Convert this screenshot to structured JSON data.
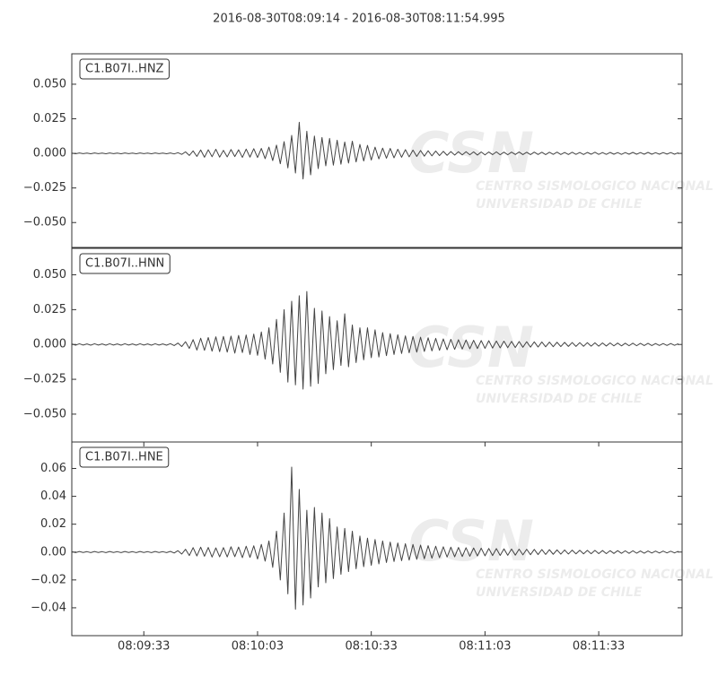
{
  "title": "2016-08-30T08:09:14  -  2016-08-30T08:11:54.995",
  "watermark": {
    "logo": "CSN",
    "lines": [
      "CENTRO SISMOLOGICO NACIONAL",
      "UNIVERSIDAD DE CHILE"
    ]
  },
  "chart_data": [
    {
      "type": "line",
      "label": "C1.B07I..HNZ",
      "color": "#444444",
      "x": [
        "08:09:14",
        "08:09:15",
        "08:09:16",
        "08:09:17",
        "08:09:18",
        "08:09:19",
        "08:09:20",
        "08:09:21",
        "08:09:22",
        "08:09:23",
        "08:09:24",
        "08:09:25",
        "08:09:26",
        "08:09:27",
        "08:09:28",
        "08:09:29",
        "08:09:30",
        "08:09:31",
        "08:09:32",
        "08:09:33",
        "08:09:34",
        "08:09:35",
        "08:09:36",
        "08:09:37",
        "08:09:38",
        "08:09:39",
        "08:09:40",
        "08:09:41",
        "08:09:42",
        "08:09:43",
        "08:09:44",
        "08:09:45",
        "08:09:46",
        "08:09:47",
        "08:09:48",
        "08:09:49",
        "08:09:50",
        "08:09:51",
        "08:09:52",
        "08:09:53",
        "08:09:54",
        "08:09:55",
        "08:09:56",
        "08:09:57",
        "08:09:58",
        "08:09:59",
        "08:10:00",
        "08:10:01",
        "08:10:02",
        "08:10:03",
        "08:10:04",
        "08:10:05",
        "08:10:06",
        "08:10:07",
        "08:10:08",
        "08:10:09",
        "08:10:10",
        "08:10:11",
        "08:10:12",
        "08:10:13",
        "08:10:14",
        "08:10:15",
        "08:10:16",
        "08:10:17",
        "08:10:18",
        "08:10:19",
        "08:10:20",
        "08:10:21",
        "08:10:22",
        "08:10:23",
        "08:10:24",
        "08:10:25",
        "08:10:26",
        "08:10:27",
        "08:10:28",
        "08:10:29",
        "08:10:30",
        "08:10:31",
        "08:10:32",
        "08:10:33",
        "08:10:34",
        "08:10:35",
        "08:10:36",
        "08:10:37",
        "08:10:38",
        "08:10:39",
        "08:10:40",
        "08:10:41",
        "08:10:42",
        "08:10:43",
        "08:10:44",
        "08:10:45",
        "08:10:46",
        "08:10:47",
        "08:10:48",
        "08:10:49",
        "08:10:50",
        "08:10:51",
        "08:10:52",
        "08:10:53",
        "08:10:54",
        "08:10:55",
        "08:10:56",
        "08:10:57",
        "08:10:58",
        "08:10:59",
        "08:11:00",
        "08:11:01",
        "08:11:02",
        "08:11:03",
        "08:11:04",
        "08:11:05",
        "08:11:06",
        "08:11:07",
        "08:11:08",
        "08:11:09",
        "08:11:10",
        "08:11:11",
        "08:11:12",
        "08:11:13",
        "08:11:14",
        "08:11:15",
        "08:11:16",
        "08:11:17",
        "08:11:18",
        "08:11:19",
        "08:11:20",
        "08:11:21",
        "08:11:22",
        "08:11:23",
        "08:11:24",
        "08:11:25",
        "08:11:26",
        "08:11:27",
        "08:11:28",
        "08:11:29",
        "08:11:30",
        "08:11:31",
        "08:11:32",
        "08:11:33",
        "08:11:34",
        "08:11:35",
        "08:11:36",
        "08:11:37",
        "08:11:38",
        "08:11:39",
        "08:11:40",
        "08:11:41",
        "08:11:42",
        "08:11:43",
        "08:11:44",
        "08:11:45",
        "08:11:46",
        "08:11:47",
        "08:11:48",
        "08:11:49",
        "08:11:50",
        "08:11:51",
        "08:11:52",
        "08:11:53",
        "08:11:54"
      ],
      "values": [
        0.0002,
        -0.0003,
        0.0003,
        -0.0002,
        0.0002,
        -0.0003,
        0.0003,
        -0.0002,
        0.0002,
        -0.0003,
        0.0003,
        -0.0002,
        0.0002,
        -0.0003,
        0.0003,
        -0.0002,
        0.0002,
        -0.0003,
        0.0003,
        -0.0002,
        0.0002,
        -0.0003,
        0.0003,
        -0.0002,
        0.0002,
        -0.0003,
        0.0003,
        -0.0004,
        0.0005,
        -0.0007,
        0.0011,
        -0.0015,
        0.0018,
        -0.0022,
        0.0025,
        -0.0028,
        0.0026,
        -0.0024,
        0.003,
        -0.0027,
        0.0022,
        -0.0025,
        0.0028,
        -0.0023,
        0.0026,
        -0.0029,
        0.0031,
        -0.0027,
        0.0034,
        -0.003,
        0.0036,
        -0.0038,
        0.0045,
        -0.0052,
        0.006,
        -0.0075,
        0.0085,
        -0.0105,
        0.013,
        -0.0142,
        0.0225,
        -0.0185,
        0.016,
        -0.0155,
        0.0125,
        -0.011,
        0.0115,
        -0.009,
        0.0108,
        -0.0085,
        0.0095,
        -0.0078,
        0.0082,
        -0.007,
        0.0088,
        -0.0062,
        0.0065,
        -0.0055,
        0.0058,
        -0.0048,
        0.0045,
        -0.004,
        0.0038,
        -0.0035,
        0.0036,
        -0.0032,
        0.003,
        -0.0028,
        0.0027,
        -0.0025,
        0.0024,
        -0.0022,
        0.0021,
        -0.002,
        0.0019,
        -0.0018,
        0.0017,
        -0.0016,
        0.0015,
        -0.0014,
        0.0013,
        -0.0012,
        0.0012,
        -0.0011,
        0.0012,
        -0.001,
        0.0011,
        -0.0012,
        0.001,
        -0.0011,
        0.001,
        -0.0009,
        0.0011,
        -0.001,
        0.0009,
        -0.001,
        0.0009,
        -0.0008,
        0.001,
        -0.0009,
        0.0008,
        -0.0009,
        0.0009,
        -0.0008,
        0.0008,
        -0.0009,
        0.0008,
        -0.0007,
        0.0009,
        -0.0008,
        0.0007,
        -0.0008,
        0.0008,
        -0.0007,
        0.0007,
        -0.0008,
        0.0007,
        -0.0006,
        0.0008,
        -0.0007,
        0.0006,
        -0.0007,
        0.0007,
        -0.0006,
        0.0006,
        -0.0007,
        0.0006,
        -0.0006,
        0.0007,
        -0.0006,
        0.0006,
        -0.0006,
        0.0007,
        -0.0006,
        0.0005,
        -0.0006,
        0.0006,
        -0.0005,
        0.0006,
        -0.0006,
        0.0005
      ],
      "xlim": [
        "08:09:14",
        "08:11:54.995"
      ],
      "ylim": [
        -0.068,
        0.072
      ],
      "yticks": [
        {
          "value": -0.05,
          "label": "−0.050"
        },
        {
          "value": -0.025,
          "label": "−0.025"
        },
        {
          "value": 0,
          "label": "0.000"
        },
        {
          "value": 0.025,
          "label": "0.025"
        },
        {
          "value": 0.05,
          "label": "0.050"
        }
      ]
    },
    {
      "type": "line",
      "label": "C1.B07I..HNN",
      "color": "#444444",
      "x": [
        "08:09:14",
        "08:09:15",
        "08:09:16",
        "08:09:17",
        "08:09:18",
        "08:09:19",
        "08:09:20",
        "08:09:21",
        "08:09:22",
        "08:09:23",
        "08:09:24",
        "08:09:25",
        "08:09:26",
        "08:09:27",
        "08:09:28",
        "08:09:29",
        "08:09:30",
        "08:09:31",
        "08:09:32",
        "08:09:33",
        "08:09:34",
        "08:09:35",
        "08:09:36",
        "08:09:37",
        "08:09:38",
        "08:09:39",
        "08:09:40",
        "08:09:41",
        "08:09:42",
        "08:09:43",
        "08:09:44",
        "08:09:45",
        "08:09:46",
        "08:09:47",
        "08:09:48",
        "08:09:49",
        "08:09:50",
        "08:09:51",
        "08:09:52",
        "08:09:53",
        "08:09:54",
        "08:09:55",
        "08:09:56",
        "08:09:57",
        "08:09:58",
        "08:09:59",
        "08:10:00",
        "08:10:01",
        "08:10:02",
        "08:10:03",
        "08:10:04",
        "08:10:05",
        "08:10:06",
        "08:10:07",
        "08:10:08",
        "08:10:09",
        "08:10:10",
        "08:10:11",
        "08:10:12",
        "08:10:13",
        "08:10:14",
        "08:10:15",
        "08:10:16",
        "08:10:17",
        "08:10:18",
        "08:10:19",
        "08:10:20",
        "08:10:21",
        "08:10:22",
        "08:10:23",
        "08:10:24",
        "08:10:25",
        "08:10:26",
        "08:10:27",
        "08:10:28",
        "08:10:29",
        "08:10:30",
        "08:10:31",
        "08:10:32",
        "08:10:33",
        "08:10:34",
        "08:10:35",
        "08:10:36",
        "08:10:37",
        "08:10:38",
        "08:10:39",
        "08:10:40",
        "08:10:41",
        "08:10:42",
        "08:10:43",
        "08:10:44",
        "08:10:45",
        "08:10:46",
        "08:10:47",
        "08:10:48",
        "08:10:49",
        "08:10:50",
        "08:10:51",
        "08:10:52",
        "08:10:53",
        "08:10:54",
        "08:10:55",
        "08:10:56",
        "08:10:57",
        "08:10:58",
        "08:10:59",
        "08:11:00",
        "08:11:01",
        "08:11:02",
        "08:11:03",
        "08:11:04",
        "08:11:05",
        "08:11:06",
        "08:11:07",
        "08:11:08",
        "08:11:09",
        "08:11:10",
        "08:11:11",
        "08:11:12",
        "08:11:13",
        "08:11:14",
        "08:11:15",
        "08:11:16",
        "08:11:17",
        "08:11:18",
        "08:11:19",
        "08:11:20",
        "08:11:21",
        "08:11:22",
        "08:11:23",
        "08:11:24",
        "08:11:25",
        "08:11:26",
        "08:11:27",
        "08:11:28",
        "08:11:29",
        "08:11:30",
        "08:11:31",
        "08:11:32",
        "08:11:33",
        "08:11:34",
        "08:11:35",
        "08:11:36",
        "08:11:37",
        "08:11:38",
        "08:11:39",
        "08:11:40",
        "08:11:41",
        "08:11:42",
        "08:11:43",
        "08:11:44",
        "08:11:45",
        "08:11:46",
        "08:11:47",
        "08:11:48",
        "08:11:49",
        "08:11:50",
        "08:11:51",
        "08:11:52",
        "08:11:53",
        "08:11:54"
      ],
      "values": [
        0.0004,
        -0.0005,
        0.0005,
        -0.0004,
        0.0004,
        -0.0005,
        0.0005,
        -0.0004,
        0.0004,
        -0.0005,
        0.0005,
        -0.0004,
        0.0004,
        -0.0005,
        0.0005,
        -0.0004,
        0.0004,
        -0.0005,
        0.0005,
        -0.0004,
        0.0004,
        -0.0005,
        0.0005,
        -0.0004,
        0.0004,
        -0.0005,
        0.0006,
        -0.0008,
        0.001,
        -0.0015,
        0.002,
        -0.0028,
        0.0035,
        -0.004,
        0.0045,
        -0.0042,
        0.005,
        -0.0048,
        0.0055,
        -0.0052,
        0.0058,
        -0.0055,
        0.006,
        -0.0062,
        0.0065,
        -0.0058,
        0.0068,
        -0.0072,
        0.0075,
        -0.0078,
        0.009,
        -0.0105,
        0.012,
        -0.014,
        0.018,
        -0.02,
        0.025,
        -0.027,
        0.031,
        -0.029,
        0.035,
        -0.032,
        0.038,
        -0.03,
        0.026,
        -0.028,
        0.024,
        -0.021,
        0.02,
        -0.018,
        0.017,
        -0.015,
        0.022,
        -0.016,
        0.014,
        -0.013,
        0.012,
        -0.011,
        0.012,
        -0.0095,
        0.0105,
        -0.009,
        0.0085,
        -0.008,
        0.0078,
        -0.0072,
        0.007,
        -0.0065,
        0.0062,
        -0.006,
        0.0058,
        -0.0055,
        0.0052,
        -0.005,
        0.0048,
        -0.0046,
        0.0044,
        -0.0042,
        0.004,
        -0.0038,
        0.0037,
        -0.0035,
        0.0034,
        -0.0033,
        0.0032,
        -0.0031,
        0.003,
        -0.0029,
        0.0028,
        -0.0028,
        0.0027,
        -0.0026,
        0.0025,
        -0.0024,
        0.0024,
        -0.0023,
        0.0022,
        -0.0022,
        0.0021,
        -0.002,
        0.002,
        -0.0019,
        0.0019,
        -0.0018,
        0.0018,
        -0.0017,
        0.0017,
        -0.0016,
        0.0016,
        -0.0015,
        0.0015,
        -0.0014,
        0.0014,
        -0.0014,
        0.0013,
        -0.0013,
        0.0013,
        -0.0012,
        0.0012,
        -0.0012,
        0.0011,
        -0.0011,
        0.0011,
        -0.001,
        0.001,
        -0.001,
        0.0009,
        -0.0009,
        0.0009,
        -0.0009,
        0.0008,
        -0.0008,
        0.0008,
        -0.0008,
        0.0007,
        -0.0007,
        0.0007,
        -0.0007,
        0.0007,
        -0.0006,
        0.0006
      ],
      "xlim": [
        "08:09:14",
        "08:11:54.995"
      ],
      "ylim": [
        -0.07,
        0.069
      ],
      "yticks": [
        {
          "value": -0.05,
          "label": "−0.050"
        },
        {
          "value": -0.025,
          "label": "−0.025"
        },
        {
          "value": 0,
          "label": "0.000"
        },
        {
          "value": 0.025,
          "label": "0.025"
        },
        {
          "value": 0.05,
          "label": "0.050"
        }
      ]
    },
    {
      "type": "line",
      "label": "C1.B07I..HNE",
      "color": "#444444",
      "x": [
        "08:09:14",
        "08:09:15",
        "08:09:16",
        "08:09:17",
        "08:09:18",
        "08:09:19",
        "08:09:20",
        "08:09:21",
        "08:09:22",
        "08:09:23",
        "08:09:24",
        "08:09:25",
        "08:09:26",
        "08:09:27",
        "08:09:28",
        "08:09:29",
        "08:09:30",
        "08:09:31",
        "08:09:32",
        "08:09:33",
        "08:09:34",
        "08:09:35",
        "08:09:36",
        "08:09:37",
        "08:09:38",
        "08:09:39",
        "08:09:40",
        "08:09:41",
        "08:09:42",
        "08:09:43",
        "08:09:44",
        "08:09:45",
        "08:09:46",
        "08:09:47",
        "08:09:48",
        "08:09:49",
        "08:09:50",
        "08:09:51",
        "08:09:52",
        "08:09:53",
        "08:09:54",
        "08:09:55",
        "08:09:56",
        "08:09:57",
        "08:09:58",
        "08:09:59",
        "08:10:00",
        "08:10:01",
        "08:10:02",
        "08:10:03",
        "08:10:04",
        "08:10:05",
        "08:10:06",
        "08:10:07",
        "08:10:08",
        "08:10:09",
        "08:10:10",
        "08:10:11",
        "08:10:12",
        "08:10:13",
        "08:10:14",
        "08:10:15",
        "08:10:16",
        "08:10:17",
        "08:10:18",
        "08:10:19",
        "08:10:20",
        "08:10:21",
        "08:10:22",
        "08:10:23",
        "08:10:24",
        "08:10:25",
        "08:10:26",
        "08:10:27",
        "08:10:28",
        "08:10:29",
        "08:10:30",
        "08:10:31",
        "08:10:32",
        "08:10:33",
        "08:10:34",
        "08:10:35",
        "08:10:36",
        "08:10:37",
        "08:10:38",
        "08:10:39",
        "08:10:40",
        "08:10:41",
        "08:10:42",
        "08:10:43",
        "08:10:44",
        "08:10:45",
        "08:10:46",
        "08:10:47",
        "08:10:48",
        "08:10:49",
        "08:10:50",
        "08:10:51",
        "08:10:52",
        "08:10:53",
        "08:10:54",
        "08:10:55",
        "08:10:56",
        "08:10:57",
        "08:10:58",
        "08:10:59",
        "08:11:00",
        "08:11:01",
        "08:11:02",
        "08:11:03",
        "08:11:04",
        "08:11:05",
        "08:11:06",
        "08:11:07",
        "08:11:08",
        "08:11:09",
        "08:11:10",
        "08:11:11",
        "08:11:12",
        "08:11:13",
        "08:11:14",
        "08:11:15",
        "08:11:16",
        "08:11:17",
        "08:11:18",
        "08:11:19",
        "08:11:20",
        "08:11:21",
        "08:11:22",
        "08:11:23",
        "08:11:24",
        "08:11:25",
        "08:11:26",
        "08:11:27",
        "08:11:28",
        "08:11:29",
        "08:11:30",
        "08:11:31",
        "08:11:32",
        "08:11:33",
        "08:11:34",
        "08:11:35",
        "08:11:36",
        "08:11:37",
        "08:11:38",
        "08:11:39",
        "08:11:40",
        "08:11:41",
        "08:11:42",
        "08:11:43",
        "08:11:44",
        "08:11:45",
        "08:11:46",
        "08:11:47",
        "08:11:48",
        "08:11:49",
        "08:11:50",
        "08:11:51",
        "08:11:52",
        "08:11:53",
        "08:11:54"
      ],
      "values": [
        0.0003,
        -0.0004,
        0.0004,
        -0.0003,
        0.0003,
        -0.0004,
        0.0004,
        -0.0003,
        0.0003,
        -0.0004,
        0.0004,
        -0.0003,
        0.0003,
        -0.0004,
        0.0004,
        -0.0003,
        0.0003,
        -0.0004,
        0.0004,
        -0.0003,
        0.0003,
        -0.0004,
        0.0004,
        -0.0003,
        0.0003,
        -0.0004,
        0.0005,
        -0.0007,
        0.001,
        -0.0014,
        0.002,
        -0.0025,
        0.0032,
        -0.0028,
        0.0035,
        -0.003,
        0.0033,
        -0.0036,
        0.003,
        -0.0034,
        0.0032,
        -0.0035,
        0.0038,
        -0.0033,
        0.0036,
        -0.004,
        0.0042,
        -0.0038,
        0.0045,
        -0.005,
        0.0055,
        -0.0065,
        0.008,
        -0.011,
        0.015,
        -0.02,
        0.028,
        -0.03,
        0.061,
        -0.041,
        0.045,
        -0.038,
        0.03,
        -0.033,
        0.032,
        -0.025,
        0.028,
        -0.022,
        0.024,
        -0.019,
        0.018,
        -0.016,
        0.017,
        -0.014,
        0.015,
        -0.012,
        0.0115,
        -0.0105,
        0.01,
        -0.0095,
        0.009,
        -0.0085,
        0.008,
        -0.0075,
        0.0072,
        -0.0068,
        0.0065,
        -0.0062,
        0.006,
        -0.0058,
        0.0055,
        -0.0052,
        0.005,
        -0.0048,
        0.0046,
        -0.0044,
        0.0042,
        -0.004,
        0.0038,
        -0.0036,
        0.0035,
        -0.0034,
        0.0033,
        -0.0032,
        0.0031,
        -0.003,
        0.0029,
        -0.0028,
        0.0028,
        -0.0027,
        0.0026,
        -0.0025,
        0.0025,
        -0.0024,
        0.0023,
        -0.0023,
        0.0022,
        -0.0022,
        0.0021,
        -0.002,
        0.002,
        -0.0019,
        0.0019,
        -0.0018,
        0.0018,
        -0.0017,
        0.0017,
        -0.0016,
        0.0016,
        -0.0015,
        0.0015,
        -0.0014,
        0.0014,
        -0.0013,
        0.0013,
        -0.0013,
        0.0012,
        -0.0012,
        0.0012,
        -0.0011,
        0.0011,
        -0.0011,
        0.001,
        -0.001,
        0.001,
        -0.0009,
        0.0009,
        -0.0009,
        0.0009,
        -0.0008,
        0.0008,
        -0.0008,
        0.0008,
        -0.0007,
        0.0007,
        -0.0007,
        0.0007,
        -0.0006,
        0.0006,
        -0.0006,
        0.0006
      ],
      "xlim": [
        "08:09:14",
        "08:11:54.995"
      ],
      "ylim": [
        -0.06,
        0.079
      ],
      "yticks": [
        {
          "value": -0.04,
          "label": "−0.04"
        },
        {
          "value": -0.02,
          "label": "−0.02"
        },
        {
          "value": 0,
          "label": "0.00"
        },
        {
          "value": 0.02,
          "label": "0.02"
        },
        {
          "value": 0.04,
          "label": "0.04"
        },
        {
          "value": 0.06,
          "label": "0.06"
        }
      ],
      "xticks": [
        "08:09:33",
        "08:10:03",
        "08:10:33",
        "08:11:03",
        "08:11:33"
      ]
    }
  ]
}
